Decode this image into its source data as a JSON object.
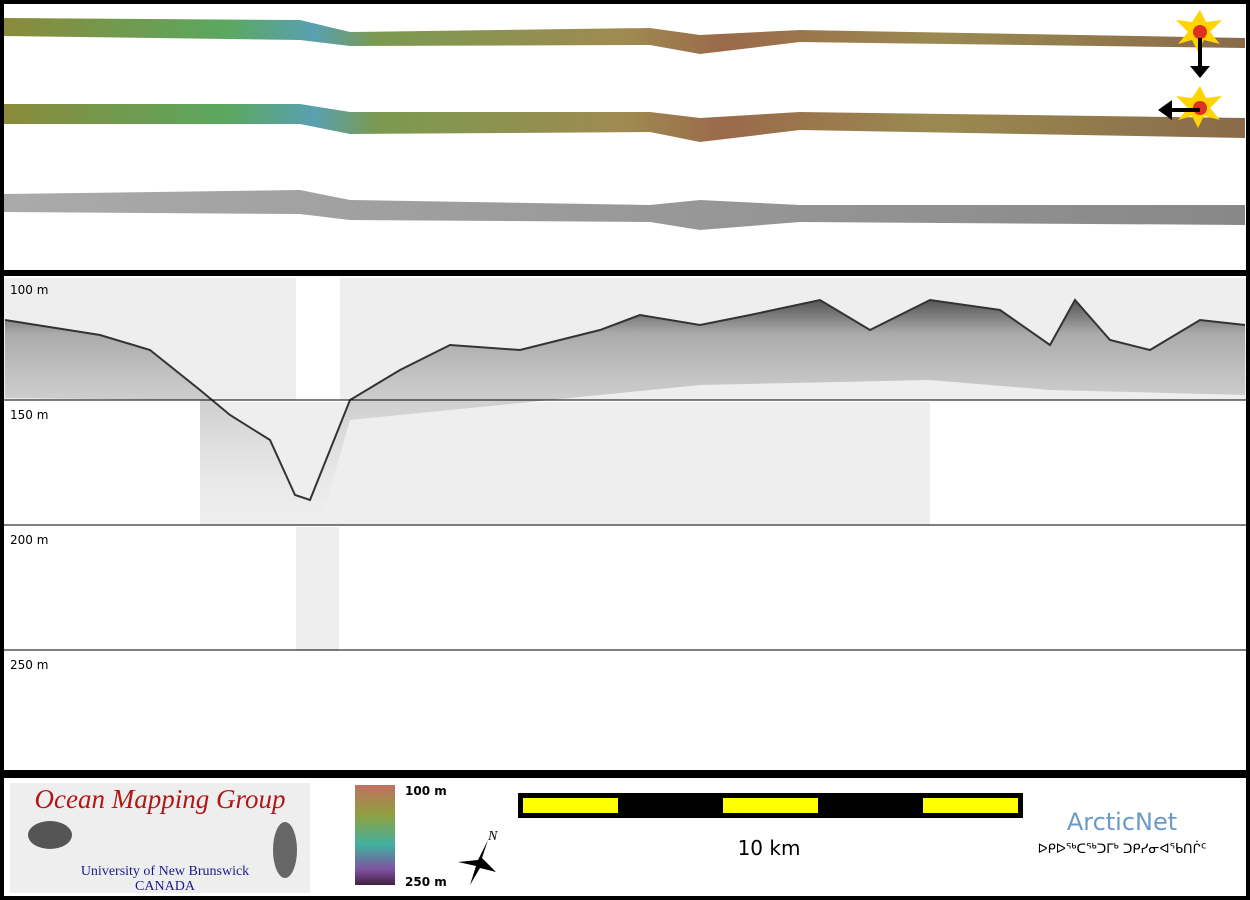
{
  "depth_axis": {
    "labels": [
      "100 m",
      "150 m",
      "200 m",
      "250 m"
    ]
  },
  "logo": {
    "title": "Ocean Mapping Group",
    "university": "University of New Brunswick",
    "country": "CANADA"
  },
  "colorbar": {
    "top_label": "100 m",
    "bottom_label": "250 m"
  },
  "north_label": "N",
  "scale_bar": {
    "label": "10 km"
  },
  "arcticnet": {
    "title": "ArcticNet",
    "subtitle": "ᐅᑭᐅᖅᑕᖅᑐᒥᒃ ᑐᑭᓯᓂᐊᖃᑎᒌᑦ"
  }
}
